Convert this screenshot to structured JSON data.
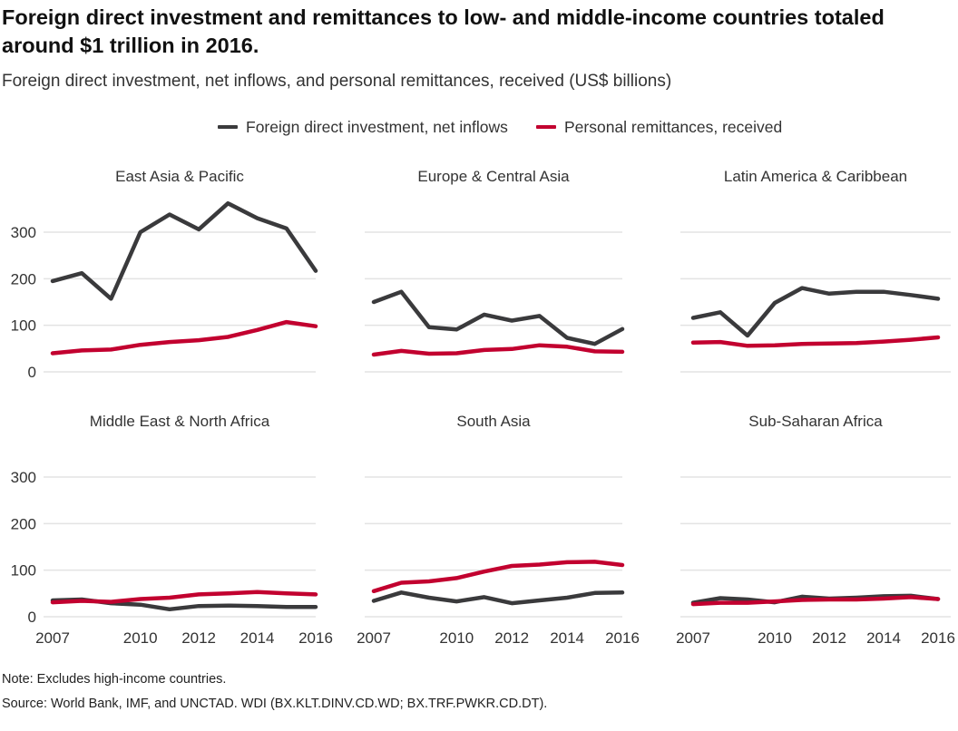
{
  "header": {
    "title": "Foreign direct investment and remittances to low- and middle-income countries totaled around $1 trillion in 2016.",
    "subtitle": "Foreign direct investment, net inflows, and personal remittances, received (US$ billions)"
  },
  "colors": {
    "fdi": "#3a3a3c",
    "remittances": "#c2002f",
    "gridline": "#e3e3e3"
  },
  "legend": {
    "fdi_label": "Foreign direct investment, net inflows",
    "remittances_label": "Personal remittances, received"
  },
  "chart_data": {
    "type": "line",
    "x": [
      2007,
      2008,
      2009,
      2010,
      2011,
      2012,
      2013,
      2014,
      2015,
      2016
    ],
    "x_ticks": [
      "2007",
      "2010",
      "2012",
      "2014",
      "2016"
    ],
    "y_ticks": [
      "0",
      "100",
      "200",
      "300"
    ],
    "ylim": [
      0,
      360
    ],
    "grid": true,
    "legend_position": "top",
    "panels": [
      {
        "title": "East Asia & Pacific",
        "series": [
          {
            "name": "Foreign direct investment, net inflows",
            "values": [
              195,
              212,
              157,
              300,
              338,
              306,
              362,
              330,
              308,
              217
            ]
          },
          {
            "name": "Personal remittances, received",
            "values": [
              40,
              46,
              48,
              58,
              64,
              68,
              75,
              90,
              107,
              98
            ]
          }
        ]
      },
      {
        "title": "Europe & Central Asia",
        "series": [
          {
            "name": "Foreign direct investment, net inflows",
            "values": [
              150,
              172,
              96,
              91,
              123,
              110,
              120,
              73,
              60,
              92
            ]
          },
          {
            "name": "Personal remittances, received",
            "values": [
              37,
              45,
              39,
              40,
              47,
              49,
              57,
              54,
              44,
              43
            ]
          }
        ]
      },
      {
        "title": "Latin America & Caribbean",
        "series": [
          {
            "name": "Foreign direct investment, net inflows",
            "values": [
              116,
              128,
              78,
              148,
              180,
              168,
              172,
              172,
              165,
              157
            ]
          },
          {
            "name": "Personal remittances, received",
            "values": [
              63,
              64,
              56,
              57,
              60,
              61,
              62,
              65,
              69,
              74
            ]
          }
        ]
      },
      {
        "title": "Middle East & North Africa",
        "series": [
          {
            "name": "Foreign direct investment, net inflows",
            "values": [
              35,
              37,
              29,
              26,
              16,
              23,
              24,
              23,
              21,
              21
            ]
          },
          {
            "name": "Personal remittances, received",
            "values": [
              31,
              34,
              32,
              38,
              41,
              48,
              50,
              53,
              50,
              48
            ]
          }
        ]
      },
      {
        "title": "South Asia",
        "series": [
          {
            "name": "Foreign direct investment, net inflows",
            "values": [
              34,
              52,
              41,
              33,
              42,
              29,
              35,
              41,
              51,
              52
            ]
          },
          {
            "name": "Personal remittances, received",
            "values": [
              55,
              73,
              76,
              83,
              97,
              109,
              112,
              117,
              118,
              111
            ]
          }
        ]
      },
      {
        "title": "Sub-Saharan Africa",
        "series": [
          {
            "name": "Foreign direct investment, net inflows",
            "values": [
              30,
              40,
              37,
              31,
              43,
              39,
              41,
              44,
              45,
              38
            ]
          },
          {
            "name": "Personal remittances, received",
            "values": [
              27,
              30,
              30,
              33,
              36,
              37,
              37,
              39,
              42,
              38
            ]
          }
        ]
      }
    ]
  },
  "footer": {
    "note": "Note: Excludes high-income countries.",
    "source": "Source: World Bank, IMF, and UNCTAD. WDI (BX.KLT.DINV.CD.WD; BX.TRF.PWKR.CD.DT)."
  }
}
